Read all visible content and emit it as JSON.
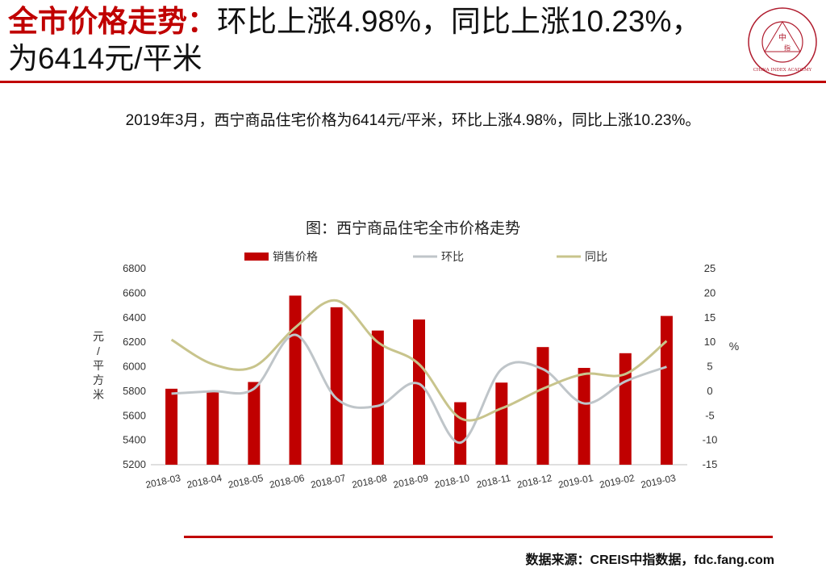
{
  "header": {
    "title_lead": "全市价格走势：",
    "title_rest": "环比上涨4.98%，同比上涨10.23%，为6414元/平米",
    "logo_center": "中",
    "logo_sub": "指",
    "logo_text": "CHINA INDEX ACADEMY"
  },
  "summary": "2019年3月，西宁商品住宅价格为6414元/平米，环比上涨4.98%，同比上涨10.23%。",
  "chart_title": "图：西宁商品住宅全市价格走势",
  "source": "数据来源：CREIS中指数据，fdc.fang.com",
  "chart_data": {
    "type": "bar",
    "title": "图：西宁商品住宅全市价格走势",
    "categories": [
      "2018-03",
      "2018-04",
      "2018-05",
      "2018-06",
      "2018-07",
      "2018-08",
      "2018-09",
      "2018-10",
      "2018-11",
      "2018-12",
      "2019-01",
      "2019-02",
      "2019-03"
    ],
    "ylabel": "元/平方米",
    "y2label": "%",
    "ylim": [
      5200,
      6800
    ],
    "y2lim": [
      -15,
      25
    ],
    "yticks": [
      5200,
      5400,
      5600,
      5800,
      6000,
      6200,
      6400,
      6600,
      6800
    ],
    "y2ticks": [
      -15,
      -10,
      -5,
      0,
      5,
      10,
      15,
      20,
      25
    ],
    "legend_position": "top",
    "grid": false,
    "series": [
      {
        "name": "销售价格",
        "type": "bar",
        "axis": "left",
        "color": "#c00000",
        "values": [
          5820,
          5805,
          5875,
          6580,
          6485,
          6295,
          6385,
          5710,
          5870,
          6160,
          5990,
          6110,
          6414
        ]
      },
      {
        "name": "环比",
        "type": "line",
        "axis": "right",
        "color": "#bfc5c9",
        "values": [
          -0.5,
          0.0,
          0.5,
          11.5,
          -1.5,
          -3.0,
          1.5,
          -10.5,
          4.5,
          4.5,
          -2.5,
          2.0,
          4.98
        ]
      },
      {
        "name": "同比",
        "type": "line",
        "axis": "right",
        "color": "#c8c48c",
        "values": [
          10.5,
          5.5,
          5.0,
          13.0,
          18.5,
          10.0,
          5.5,
          -5.5,
          -3.5,
          0.5,
          3.5,
          3.5,
          10.23
        ]
      }
    ]
  }
}
